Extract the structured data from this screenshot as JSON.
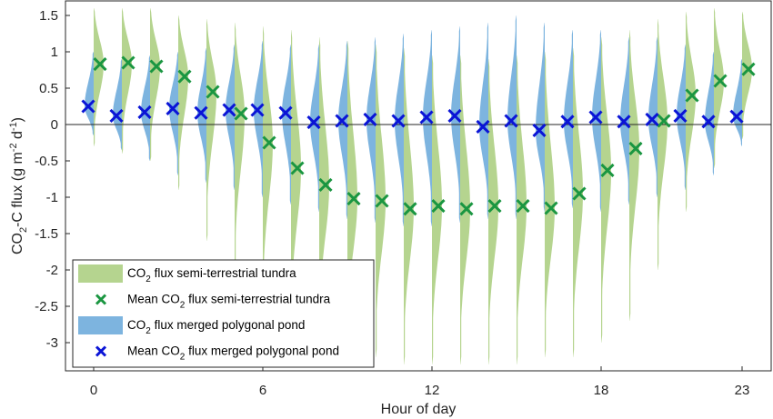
{
  "chart_data": {
    "type": "scatter",
    "subtype": "split-violin with mean markers",
    "title": "",
    "xlabel": "Hour of day",
    "ylabel": "CO2-C flux (g m-2 d-1)",
    "ylabel_parts": {
      "pre": "CO",
      "sub": "2",
      "mid": "-C flux (g m",
      "sup1": "-2",
      "mid2": " d",
      "sup2": "-1",
      "post": ")"
    },
    "xlim": [
      -0.8,
      24.2
    ],
    "ylim": [
      -3.4,
      1.7
    ],
    "xticks": [
      0,
      6,
      12,
      18,
      23
    ],
    "xtick_labels": [
      "0",
      "6",
      "12",
      "18",
      "23"
    ],
    "yticks": [
      1.5,
      1,
      0.5,
      0,
      -0.5,
      -1,
      -1.5,
      -2,
      -2.5,
      -3
    ],
    "ytick_labels": [
      "1.5",
      "1",
      "0.5",
      "0",
      "-0.5",
      "-1",
      "-1.5",
      "-2",
      "-2.5",
      "-3"
    ],
    "zero_line": true,
    "grid": false,
    "legend_position": "bottom-left",
    "hours": [
      0,
      1,
      2,
      3,
      4,
      5,
      6,
      7,
      8,
      9,
      10,
      11,
      12,
      13,
      14,
      15,
      16,
      17,
      18,
      19,
      20,
      21,
      22,
      23
    ],
    "series": [
      {
        "name": "Mean CO2 flux semi-terrestrial tundra",
        "kind": "mean-marker",
        "marker": "x",
        "color": "#1a9641",
        "side": "right",
        "values": [
          0.83,
          0.85,
          0.8,
          0.66,
          0.45,
          0.15,
          -0.25,
          -0.6,
          -0.83,
          -1.02,
          -1.05,
          -1.16,
          -1.12,
          -1.16,
          -1.12,
          -1.12,
          -1.15,
          -0.95,
          -0.63,
          -0.33,
          0.05,
          0.4,
          0.6,
          0.76
        ]
      },
      {
        "name": "Mean CO2 flux merged polygonal pond",
        "kind": "mean-marker",
        "marker": "x",
        "color": "#0a14d6",
        "side": "left",
        "values": [
          0.25,
          0.12,
          0.17,
          0.22,
          0.16,
          0.2,
          0.2,
          0.16,
          0.03,
          0.05,
          0.07,
          0.05,
          0.1,
          0.12,
          -0.03,
          0.05,
          -0.08,
          0.04,
          0.1,
          0.04,
          0.07,
          0.12,
          0.04,
          0.11
        ]
      },
      {
        "name": "CO2 flux semi-terrestrial tundra",
        "kind": "distribution",
        "color": "#b5d48f",
        "side": "right",
        "range_max": [
          1.6,
          1.6,
          1.6,
          1.5,
          1.45,
          1.4,
          1.35,
          1.3,
          1.2,
          1.15,
          1.1,
          1.05,
          0.95,
          0.95,
          0.9,
          0.95,
          1.0,
          1.05,
          1.2,
          1.3,
          1.45,
          1.55,
          1.6,
          1.55
        ],
        "range_min": [
          -0.3,
          -0.4,
          -0.5,
          -0.9,
          -1.6,
          -2.2,
          -2.6,
          -2.9,
          -3.0,
          -3.1,
          -3.2,
          -3.3,
          -3.3,
          -3.3,
          -3.3,
          -3.3,
          -3.2,
          -3.2,
          -3.0,
          -2.7,
          -2.0,
          -1.2,
          -0.6,
          -0.2
        ]
      },
      {
        "name": "CO2 flux merged polygonal pond",
        "kind": "distribution",
        "color": "#7db4df",
        "side": "left",
        "range_max": [
          1.0,
          0.9,
          0.95,
          1.0,
          1.05,
          1.1,
          1.15,
          1.1,
          1.1,
          1.15,
          1.2,
          1.25,
          1.3,
          1.35,
          1.4,
          1.5,
          1.4,
          1.3,
          1.3,
          1.2,
          1.2,
          1.1,
          1.0,
          0.9
        ],
        "range_min": [
          -0.15,
          -0.35,
          -0.5,
          -0.7,
          -0.8,
          -0.9,
          -1.0,
          -1.1,
          -1.2,
          -1.3,
          -1.35,
          -1.4,
          -1.4,
          -1.35,
          -1.3,
          -1.3,
          -1.2,
          -1.15,
          -1.2,
          -1.1,
          -1.0,
          -0.9,
          -0.7,
          -0.3
        ]
      }
    ],
    "legend": [
      {
        "kind": "patch",
        "color": "#b5d48f",
        "pre": "CO",
        "sub": "2",
        "post": " flux semi-terrestrial tundra"
      },
      {
        "kind": "marker",
        "color": "#1a9641",
        "pre": "Mean CO",
        "sub": "2",
        "post": " flux semi-terrestrial tundra"
      },
      {
        "kind": "patch",
        "color": "#7db4df",
        "pre": "CO",
        "sub": "2",
        "post": " flux merged polygonal pond"
      },
      {
        "kind": "marker",
        "color": "#0a14d6",
        "pre": "Mean CO",
        "sub": "2",
        "post": " flux merged polygonal pond"
      }
    ]
  }
}
